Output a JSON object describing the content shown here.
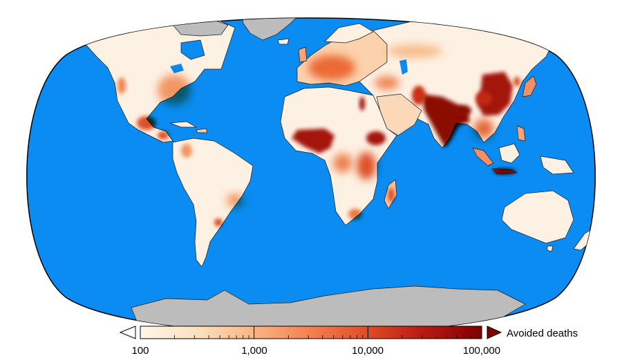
{
  "map": {
    "projection": "robinson",
    "ocean_color": "#0a8cf2",
    "land_base_color": "#fdf1e3",
    "no_data_color": "#bcbcbc",
    "border_color": "#1a1a1a"
  },
  "legend": {
    "title": "Avoided deaths",
    "scale": "log",
    "ticks": [
      "100",
      "1,000",
      "10,000",
      "100,000"
    ],
    "min": 100,
    "max": 100000,
    "colors": [
      "#fff6ea",
      "#fde0be",
      "#f9b586",
      "#f2814f",
      "#de4a27",
      "#b81a12",
      "#7f0000"
    ],
    "under_color": "#ffffff",
    "over_color": "#7f0000"
  },
  "hotspots": [
    {
      "region": "india",
      "level": 0.95
    },
    {
      "region": "eastern-china",
      "level": 0.9
    },
    {
      "region": "bangladesh",
      "level": 0.9
    },
    {
      "region": "nigeria",
      "level": 0.85
    },
    {
      "region": "ethiopia",
      "level": 0.8
    },
    {
      "region": "java",
      "level": 0.8
    },
    {
      "region": "nile-delta",
      "level": 0.8
    },
    {
      "region": "europe",
      "level": 0.55
    },
    {
      "region": "eastern-usa",
      "level": 0.45
    },
    {
      "region": "mexico-central-america",
      "level": 0.5
    }
  ]
}
